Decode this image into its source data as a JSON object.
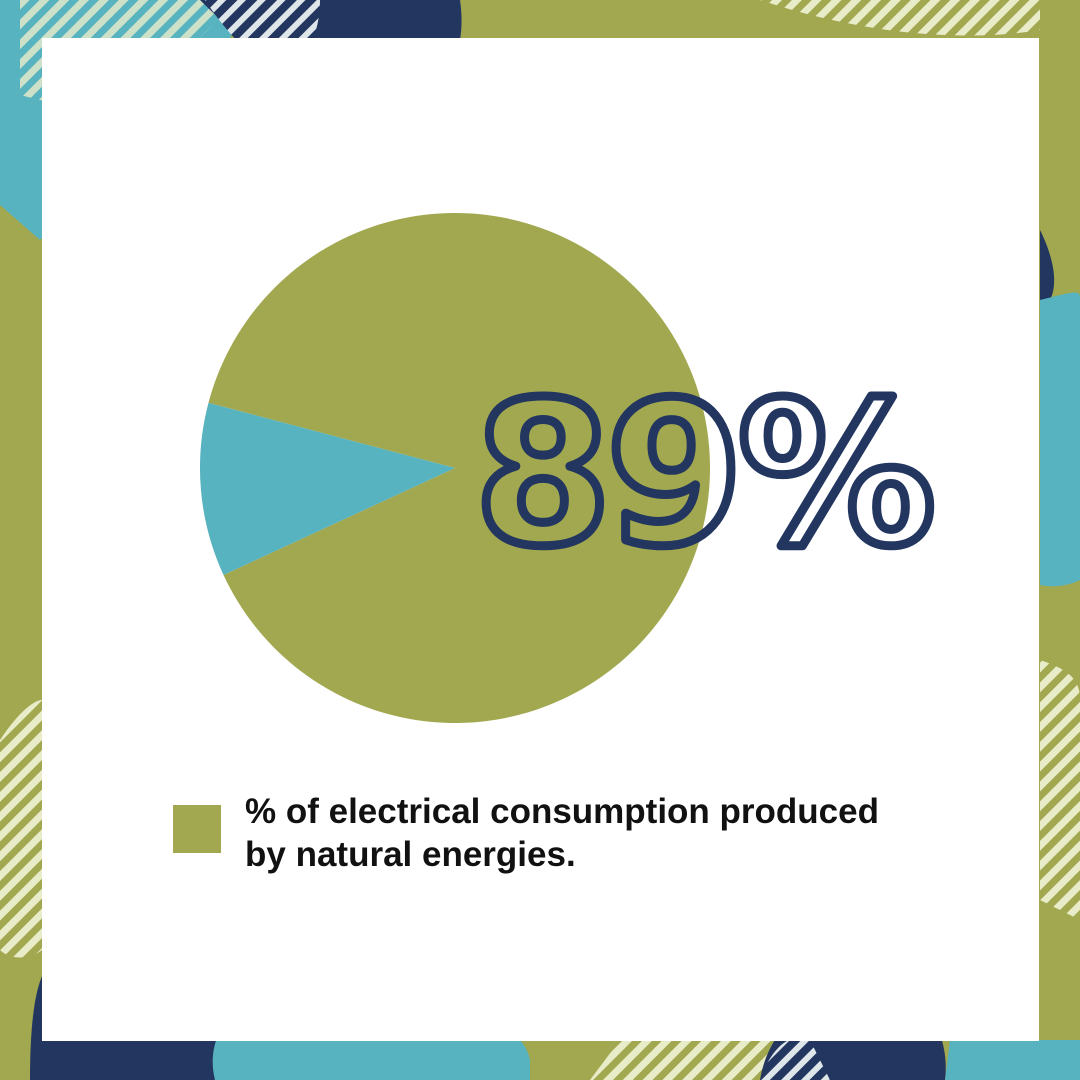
{
  "colors": {
    "olive": "#a2a84f",
    "teal": "#56b3bf",
    "navy": "#223660",
    "white": "#ffffff",
    "stripe_light": "#e9ecc9"
  },
  "chart_data": {
    "type": "pie",
    "slices": [
      {
        "value": 89,
        "color": "#a2a84f"
      },
      {
        "value": 11,
        "color": "#56b3bf"
      }
    ],
    "annotation": "89%",
    "legend": [
      {
        "label": "% of electrical consumption produced by natural energies.",
        "color": "#a2a84f"
      }
    ],
    "legend_placement": "bottom"
  }
}
